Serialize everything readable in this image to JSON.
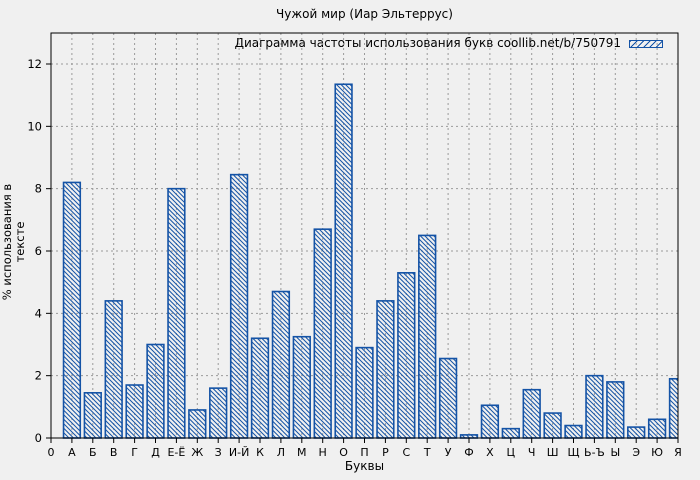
{
  "title": "Чужой мир (Иар Эльтеррус)",
  "legend": {
    "label": "Диаграмма частоты использования букв coollib.net/b/750791"
  },
  "axes": {
    "x_label": "Буквы",
    "y_label": "% использования в тексте",
    "y_ticks": [
      0,
      2,
      4,
      6,
      8,
      10,
      12
    ],
    "x_origin_label": "0"
  },
  "colors": {
    "background": "#f0f0f0",
    "bar": "#1453a6",
    "grid": "#9a9a9a",
    "frame": "#000000"
  },
  "chart_data": {
    "type": "bar",
    "title": "Чужой мир (Иар Эльтеррус)",
    "legend": [
      "Диаграмма частоты использования букв coollib.net/b/750791"
    ],
    "legend_position": "top-right",
    "xlabel": "Буквы",
    "ylabel": "% использования в тексте",
    "ylim": [
      0,
      13
    ],
    "y_ticks": [
      0,
      2,
      4,
      6,
      8,
      10,
      12
    ],
    "grid": true,
    "x_origin_label": "0",
    "categories": [
      "А",
      "Б",
      "В",
      "Г",
      "Д",
      "Е-Ё",
      "Ж",
      "З",
      "И-Й",
      "К",
      "Л",
      "М",
      "Н",
      "О",
      "П",
      "Р",
      "С",
      "Т",
      "У",
      "Ф",
      "Х",
      "Ц",
      "Ч",
      "Ш",
      "Щ",
      "Ь-Ъ",
      "Ы",
      "Э",
      "Ю",
      "Я"
    ],
    "values": [
      8.2,
      1.45,
      4.4,
      1.7,
      3.0,
      8.0,
      0.9,
      1.6,
      8.45,
      3.2,
      4.7,
      3.25,
      6.7,
      11.35,
      2.9,
      4.4,
      5.3,
      6.5,
      2.55,
      0.1,
      1.05,
      0.3,
      1.55,
      0.8,
      0.4,
      2.0,
      1.8,
      0.35,
      0.6,
      1.9
    ],
    "bar_style": {
      "color": "#1453a6",
      "fill_pattern": "diagonal-hatch",
      "bar_width_fraction": 0.8
    }
  }
}
